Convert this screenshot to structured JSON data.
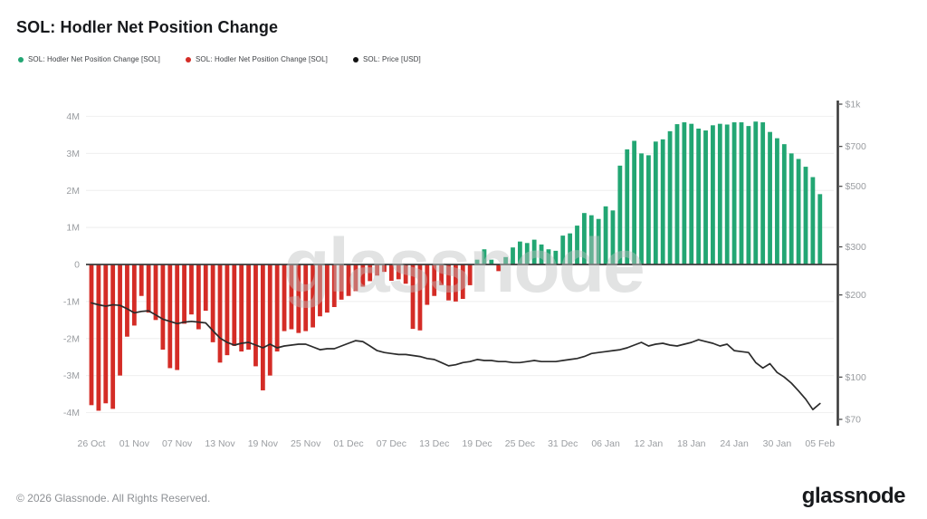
{
  "header": {
    "title": "SOL: Hodler Net Position Change"
  },
  "legend": {
    "items": [
      {
        "label": "SOL: Hodler Net Position Change [SOL]",
        "color": "#22a673",
        "icon": "green-dot"
      },
      {
        "label": "SOL: Hodler Net Position Change [SOL]",
        "color": "#d42c26",
        "icon": "red-dot"
      },
      {
        "label": "SOL: Price [USD]",
        "color": "#111111",
        "icon": "black-dot"
      }
    ]
  },
  "watermark": {
    "text": "glassnode"
  },
  "footer": {
    "copyright": "© 2026 Glassnode. All Rights Reserved.",
    "logo_text": "glassnode"
  },
  "theme": {
    "background": "#ffffff",
    "grid_line": "#f1f1f1",
    "zero_line": "#3c3c3c",
    "axis_line": "#3c3c3c",
    "axis_text": "#9a9da1",
    "positive": "#22a673",
    "negative": "#d42c26",
    "price_line": "#2b2b2b"
  },
  "chart_data": {
    "type": "bar",
    "title": "SOL: Hodler Net Position Change",
    "x_is_time": true,
    "x_start_label": "26 Oct",
    "x_end_label": "05 Feb",
    "x_tick_interval_days": 6,
    "x_tick_labels": [
      "26 Oct",
      "01 Nov",
      "07 Nov",
      "13 Nov",
      "19 Nov",
      "25 Nov",
      "01 Dec",
      "07 Dec",
      "13 Dec",
      "19 Dec",
      "25 Dec",
      "31 Dec",
      "06 Jan",
      "12 Jan",
      "18 Jan",
      "24 Jan",
      "30 Jan",
      "05 Feb"
    ],
    "left_axis": {
      "title": "Hodler Net Position Change [SOL]",
      "scale": "linear",
      "ylim": [
        -4000000,
        4000000
      ],
      "tick_labels": [
        "4M",
        "3M",
        "2M",
        "1M",
        "0",
        "-1M",
        "-2M",
        "-3M",
        "-4M"
      ],
      "tick_values_M": [
        4,
        3,
        2,
        1,
        0,
        -1,
        -2,
        -3,
        -4
      ],
      "grid": true
    },
    "right_axis": {
      "title": "Price [USD]",
      "scale": "log",
      "ylim": [
        70,
        1000
      ],
      "tick_labels": [
        "$1k",
        "$700",
        "$500",
        "$300",
        "$200",
        "$100",
        "$70"
      ],
      "tick_values": [
        1000,
        700,
        500,
        300,
        200,
        100,
        70
      ],
      "grid": false
    },
    "series": [
      {
        "name": "SOL: Hodler Net Position Change [SOL]",
        "type": "bar",
        "axis": "left",
        "unit": "M SOL",
        "positive_color": "#22a673",
        "negative_color": "#d42c26",
        "values": [
          -3.8,
          -3.95,
          -3.75,
          -3.9,
          -3.0,
          -1.95,
          -1.65,
          -0.85,
          -1.3,
          -1.5,
          -2.3,
          -2.8,
          -2.85,
          -1.6,
          -1.35,
          -1.75,
          -1.25,
          -2.1,
          -2.65,
          -2.45,
          -2.2,
          -2.35,
          -2.3,
          -2.75,
          -3.4,
          -3.0,
          -2.35,
          -1.8,
          -1.75,
          -1.85,
          -1.8,
          -1.7,
          -1.4,
          -1.3,
          -1.15,
          -0.95,
          -0.85,
          -0.72,
          -0.6,
          -0.45,
          -0.3,
          -0.2,
          -0.44,
          -0.4,
          -0.52,
          -1.74,
          -1.78,
          -1.09,
          -0.85,
          -0.56,
          -0.97,
          -1.0,
          -0.93,
          -0.56,
          0.13,
          0.41,
          0.13,
          -0.18,
          0.2,
          0.46,
          0.62,
          0.58,
          0.67,
          0.54,
          0.41,
          0.37,
          0.78,
          0.84,
          1.05,
          1.39,
          1.33,
          1.23,
          1.57,
          1.46,
          2.67,
          3.11,
          3.34,
          3.0,
          2.95,
          3.32,
          3.38,
          3.6,
          3.79,
          3.84,
          3.8,
          3.67,
          3.62,
          3.76,
          3.8,
          3.78,
          3.84,
          3.84,
          3.74,
          3.86,
          3.84,
          3.58,
          3.41,
          3.25,
          3.0,
          2.85,
          2.64,
          2.36,
          1.9
        ]
      },
      {
        "name": "SOL: Price [USD]",
        "type": "line",
        "axis": "right",
        "unit": "USD",
        "color": "#2b2b2b",
        "values": [
          187,
          184,
          182,
          184,
          183,
          178,
          172,
          174,
          175,
          169,
          163,
          160,
          157,
          159,
          160,
          159,
          158,
          148,
          139,
          134,
          131,
          133,
          134,
          131,
          128,
          132,
          128,
          130,
          131,
          132,
          132,
          129,
          126,
          127,
          127,
          130,
          133,
          136,
          135,
          130,
          125,
          123,
          122,
          121,
          121,
          120,
          119,
          117,
          116,
          113,
          110,
          111,
          113,
          114,
          116,
          115,
          115,
          114,
          114,
          113,
          113,
          114,
          115,
          114,
          114,
          114,
          115,
          116,
          117,
          119,
          122,
          123,
          124,
          125,
          126,
          128,
          131,
          134,
          130,
          132,
          133,
          131,
          130,
          132,
          134,
          137,
          135,
          133,
          130,
          132,
          125,
          124,
          123,
          113,
          108,
          112,
          104,
          100,
          95,
          89,
          83,
          76,
          80
        ]
      }
    ],
    "legend_position": "top-left"
  }
}
